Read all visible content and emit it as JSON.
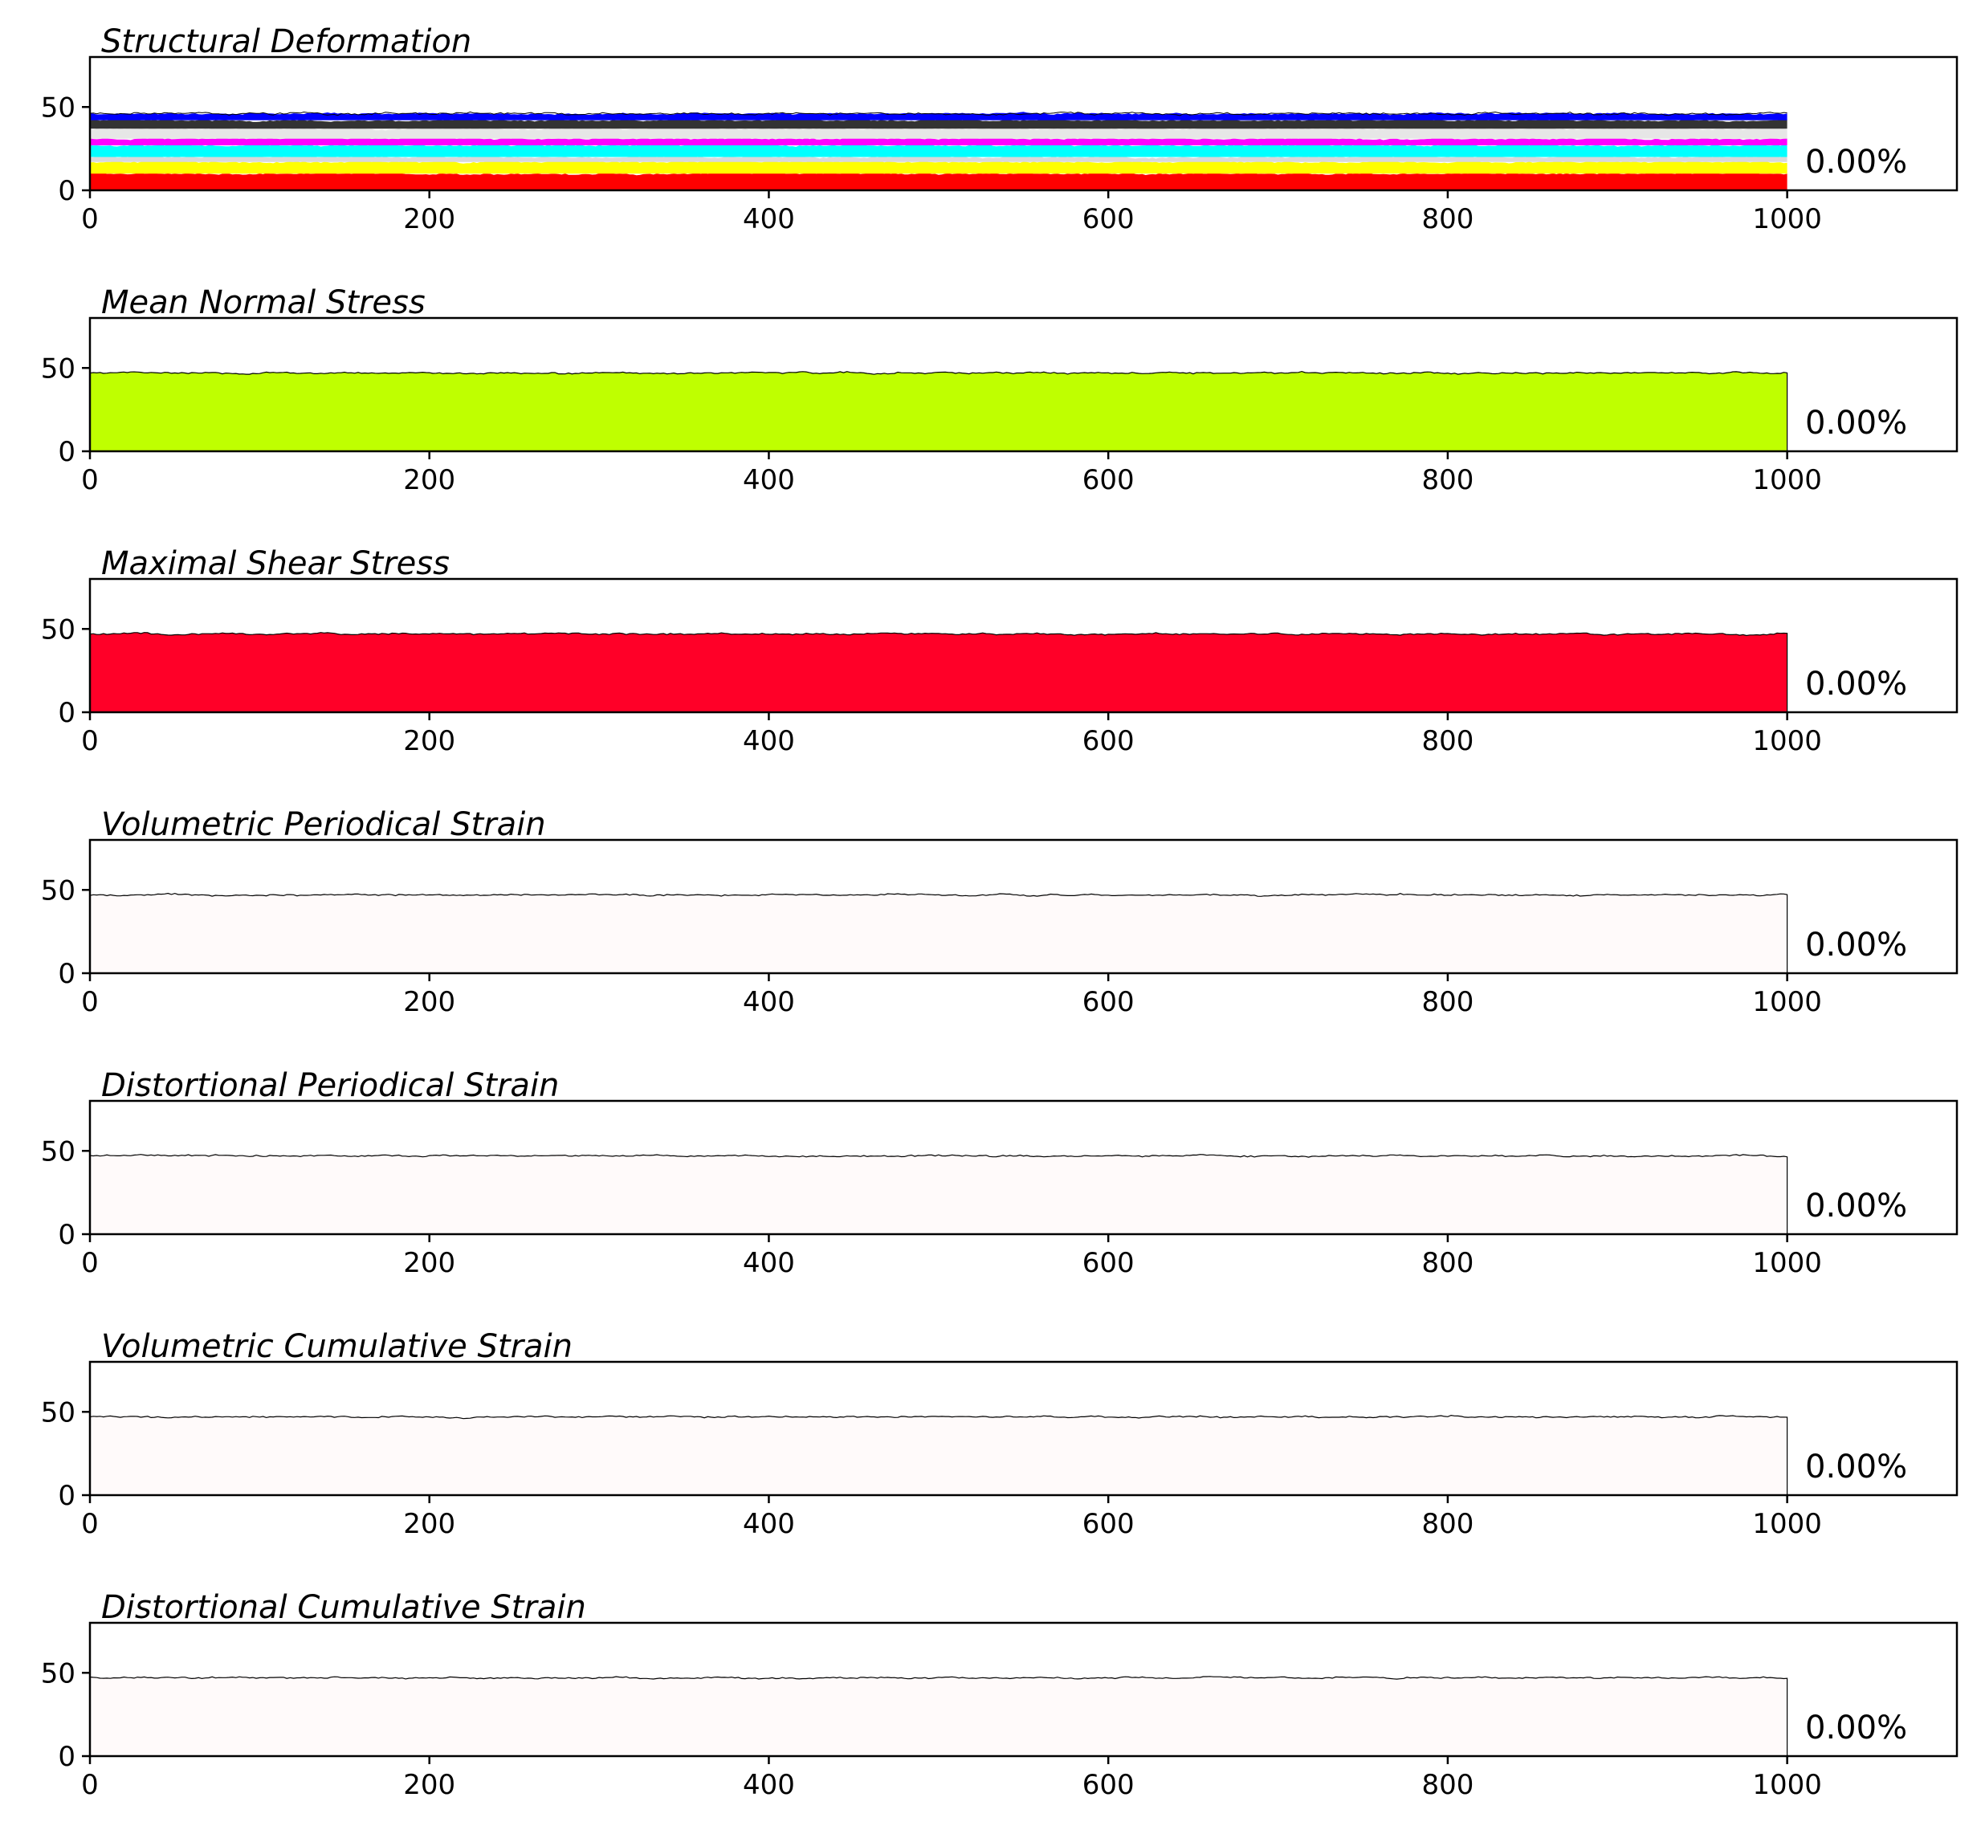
{
  "chart_data": [
    {
      "type": "area",
      "title": "Structural Deformation",
      "annotation": "0.00%",
      "xlim": [
        0,
        1100
      ],
      "ylim": [
        0,
        80
      ],
      "xticks": [
        0,
        200,
        400,
        600,
        800,
        1000
      ],
      "yticks": [
        0,
        50
      ],
      "x_range": [
        0,
        1000
      ],
      "bands": [
        {
          "color": "#ff0000",
          "lower": 0,
          "upper": 10
        },
        {
          "color": "#ffff00",
          "lower": 10,
          "upper": 17
        },
        {
          "color": "#d9d9d9",
          "lower": 17,
          "upper": 20
        },
        {
          "color": "#00ffff",
          "lower": 20,
          "upper": 27
        },
        {
          "color": "#ff00ff",
          "lower": 27,
          "upper": 31
        },
        {
          "color": "#e6e6e6",
          "lower": 31,
          "upper": 37
        },
        {
          "color": "#333333",
          "lower": 37,
          "upper": 42
        },
        {
          "color": "#0000ff",
          "lower": 42,
          "upper": 46
        }
      ],
      "grid": false,
      "legend": "none"
    },
    {
      "type": "area",
      "title": "Mean Normal Stress",
      "annotation": "0.00%",
      "xlim": [
        0,
        1100
      ],
      "ylim": [
        0,
        80
      ],
      "xticks": [
        0,
        200,
        400,
        600,
        800,
        1000
      ],
      "yticks": [
        0,
        50
      ],
      "x_range": [
        0,
        1000
      ],
      "fill": "#bfff00",
      "level": 47,
      "grid": false,
      "legend": "none"
    },
    {
      "type": "area",
      "title": "Maximal Shear Stress",
      "annotation": "0.00%",
      "xlim": [
        0,
        1100
      ],
      "ylim": [
        0,
        80
      ],
      "xticks": [
        0,
        200,
        400,
        600,
        800,
        1000
      ],
      "yticks": [
        0,
        50
      ],
      "x_range": [
        0,
        1000
      ],
      "fill": "#ff0028",
      "level": 47,
      "grid": false,
      "legend": "none"
    },
    {
      "type": "area",
      "title": "Volumetric Periodical Strain",
      "annotation": "0.00%",
      "xlim": [
        0,
        1100
      ],
      "ylim": [
        0,
        80
      ],
      "xticks": [
        0,
        200,
        400,
        600,
        800,
        1000
      ],
      "yticks": [
        0,
        50
      ],
      "x_range": [
        0,
        1000
      ],
      "fill": "#fffafa",
      "level": 47,
      "grid": false,
      "legend": "none"
    },
    {
      "type": "area",
      "title": "Distortional Periodical Strain",
      "annotation": "0.00%",
      "xlim": [
        0,
        1100
      ],
      "ylim": [
        0,
        80
      ],
      "xticks": [
        0,
        200,
        400,
        600,
        800,
        1000
      ],
      "yticks": [
        0,
        50
      ],
      "x_range": [
        0,
        1000
      ],
      "fill": "#fffafa",
      "level": 47,
      "grid": false,
      "legend": "none"
    },
    {
      "type": "area",
      "title": "Volumetric Cumulative Strain",
      "annotation": "0.00%",
      "xlim": [
        0,
        1100
      ],
      "ylim": [
        0,
        80
      ],
      "xticks": [
        0,
        200,
        400,
        600,
        800,
        1000
      ],
      "yticks": [
        0,
        50
      ],
      "x_range": [
        0,
        1000
      ],
      "fill": "#fffafa",
      "level": 47,
      "grid": false,
      "legend": "none"
    },
    {
      "type": "area",
      "title": "Distortional Cumulative Strain",
      "annotation": "0.00%",
      "xlim": [
        0,
        1100
      ],
      "ylim": [
        0,
        80
      ],
      "xticks": [
        0,
        200,
        400,
        600,
        800,
        1000
      ],
      "yticks": [
        0,
        50
      ],
      "x_range": [
        0,
        1000
      ],
      "fill": "#fffafa",
      "level": 47,
      "grid": false,
      "legend": "none"
    }
  ]
}
